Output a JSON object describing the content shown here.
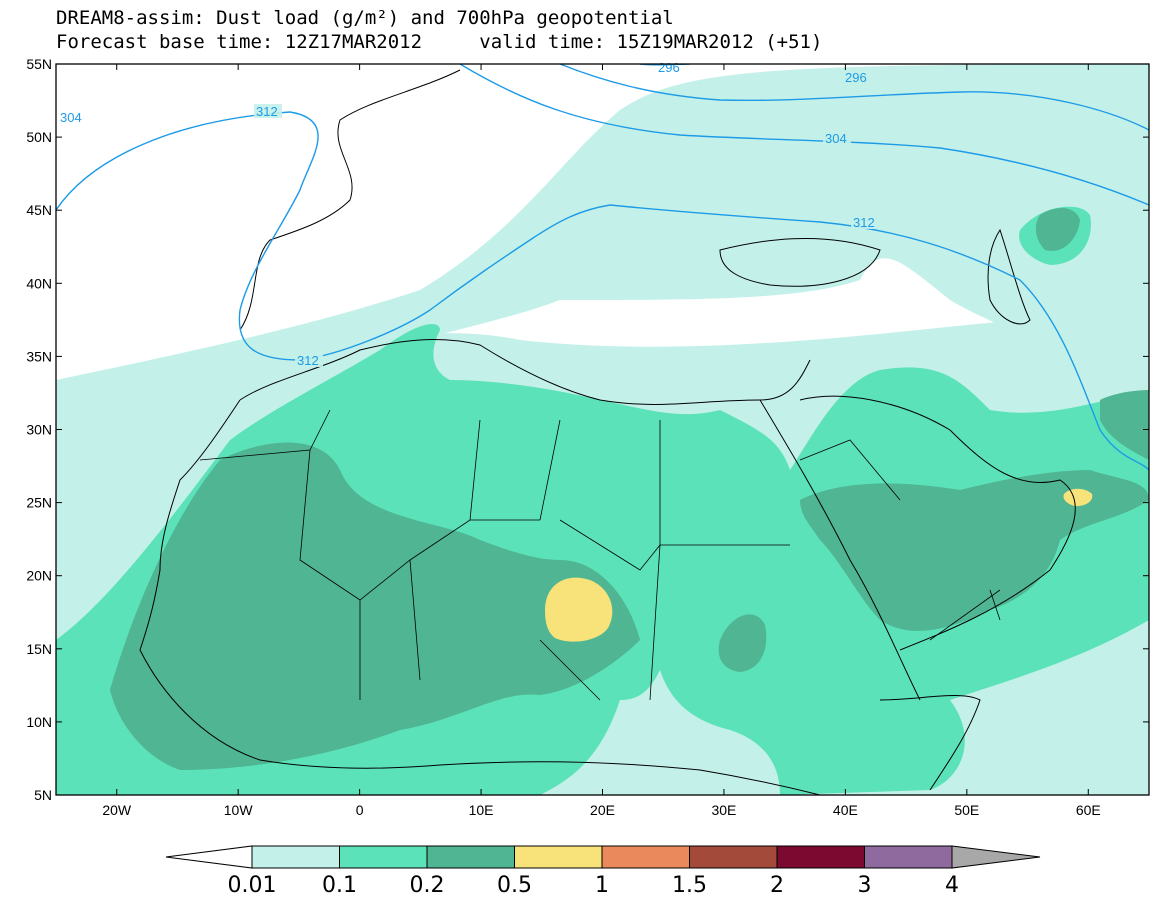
{
  "title": {
    "line1": "DREAM8-assim: Dust load (g/m²) and 700hPa geopotential",
    "base_time": "Forecast base time: 12Z17MAR2012",
    "valid_time": "valid time: 15Z19MAR2012 (+51)"
  },
  "map": {
    "region": "North Africa, Europe and Middle East",
    "lon_range": [
      -25,
      65
    ],
    "lat_range": [
      5,
      55
    ],
    "lat_labels": [
      "5N",
      "10N",
      "15N",
      "20N",
      "25N",
      "30N",
      "35N",
      "40N",
      "45N",
      "50N",
      "55N"
    ],
    "lon_labels": [
      "20W",
      "10W",
      "0",
      "10E",
      "20E",
      "30E",
      "40E",
      "50E",
      "60E"
    ],
    "contours": [
      {
        "label": "304"
      },
      {
        "label": "312"
      },
      {
        "label": "312"
      },
      {
        "label": "296"
      },
      {
        "label": "304"
      },
      {
        "label": "312"
      },
      {
        "label": "296"
      }
    ],
    "contour_color": "#1e9be6"
  },
  "legend": {
    "thresholds": [
      "0.01",
      "0.1",
      "0.2",
      "0.5",
      "1",
      "1.5",
      "2",
      "3",
      "4"
    ],
    "colors": [
      "#ffffff",
      "#c3f1ea",
      "#5ce2b8",
      "#4fb592",
      "#f8e27a",
      "#ea8a5c",
      "#a34a3a",
      "#7c0a30",
      "#8e6a9e",
      "#a8a8a8"
    ]
  }
}
